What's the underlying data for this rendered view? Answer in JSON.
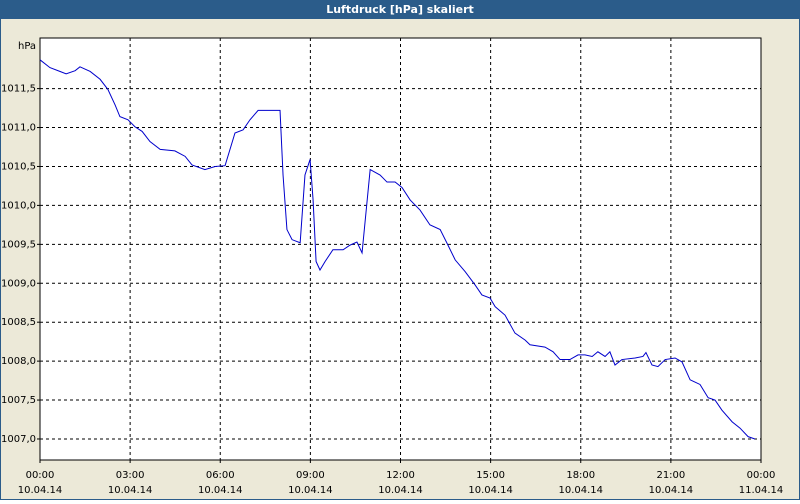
{
  "chart_data": {
    "type": "line",
    "title": "Luftdruck [hPa] skaliert",
    "y_unit": "hPa",
    "x": [
      0,
      0.33,
      0.67,
      0.87,
      1.17,
      1.33,
      1.67,
      2.0,
      2.26,
      2.5,
      2.66,
      2.93,
      3.16,
      3.4,
      3.66,
      4.0,
      4.49,
      4.83,
      5.06,
      5.49,
      5.83,
      6.16,
      6.49,
      6.76,
      6.99,
      7.26,
      7.66,
      7.99,
      8.09,
      8.22,
      8.39,
      8.66,
      8.82,
      8.99,
      9.09,
      9.19,
      9.32,
      9.49,
      9.75,
      10.09,
      10.32,
      10.55,
      10.72,
      10.99,
      11.32,
      11.55,
      11.82,
      12.05,
      12.32,
      12.65,
      12.98,
      13.32,
      13.58,
      13.82,
      14.15,
      14.48,
      14.71,
      14.98,
      15.15,
      15.48,
      15.81,
      16.15,
      16.31,
      16.81,
      17.08,
      17.31,
      17.64,
      17.91,
      18.14,
      18.38,
      18.57,
      18.81,
      18.97,
      19.14,
      19.37,
      19.81,
      20.07,
      20.17,
      20.37,
      20.57,
      20.81,
      21.14,
      21.37,
      21.64,
      21.97,
      22.24,
      22.47,
      22.7,
      23.04,
      23.3,
      23.57,
      23.8
    ],
    "values": [
      1011.87,
      1011.77,
      1011.72,
      1011.69,
      1011.73,
      1011.78,
      1011.72,
      1011.62,
      1011.49,
      1011.29,
      1011.14,
      1011.1,
      1011.01,
      1010.95,
      1010.82,
      1010.72,
      1010.7,
      1010.63,
      1010.52,
      1010.46,
      1010.5,
      1010.51,
      1010.93,
      1010.97,
      1011.1,
      1011.22,
      1011.22,
      1011.22,
      1010.39,
      1009.69,
      1009.56,
      1009.52,
      1010.39,
      1010.59,
      1010.07,
      1009.28,
      1009.17,
      1009.28,
      1009.43,
      1009.43,
      1009.49,
      1009.53,
      1009.39,
      1010.46,
      1010.39,
      1010.3,
      1010.3,
      1010.23,
      1010.07,
      1009.94,
      1009.75,
      1009.69,
      1009.49,
      1009.3,
      1009.15,
      1008.98,
      1008.85,
      1008.81,
      1008.7,
      1008.59,
      1008.36,
      1008.27,
      1008.21,
      1008.18,
      1008.12,
      1008.02,
      1008.02,
      1008.08,
      1008.08,
      1008.06,
      1008.12,
      1008.06,
      1008.12,
      1007.95,
      1008.02,
      1008.04,
      1008.06,
      1008.11,
      1007.95,
      1007.93,
      1008.02,
      1008.04,
      1007.99,
      1007.76,
      1007.7,
      1007.53,
      1007.5,
      1007.37,
      1007.22,
      1007.14,
      1007.03,
      1007.0
    ],
    "color": "#0000cc",
    "xlim": [
      0,
      24
    ],
    "xticks": [
      {
        "value": 0,
        "label": "00:00"
      },
      {
        "value": 3,
        "label": "03:00"
      },
      {
        "value": 6,
        "label": "06:00"
      },
      {
        "value": 9,
        "label": "09:00"
      },
      {
        "value": 12,
        "label": "12:00"
      },
      {
        "value": 15,
        "label": "15:00"
      },
      {
        "value": 18,
        "label": "18:00"
      },
      {
        "value": 21,
        "label": "21:00"
      },
      {
        "value": 24,
        "label": "00:00"
      }
    ],
    "xtick_dates": [
      "10.04.14",
      "10.04.14",
      "10.04.14",
      "10.04.14",
      "10.04.14",
      "10.04.14",
      "10.04.14",
      "10.04.14",
      "11.04.14"
    ],
    "ylim": [
      1006.73,
      1012.15
    ],
    "yticks": [
      {
        "value": 1007,
        "label": "1007,0"
      },
      {
        "value": 1007.5,
        "label": "1007,5"
      },
      {
        "value": 1008,
        "label": "1008,0"
      },
      {
        "value": 1008.5,
        "label": "1008,5"
      },
      {
        "value": 1009,
        "label": "1009,0"
      },
      {
        "value": 1009.5,
        "label": "1009,5"
      },
      {
        "value": 1010,
        "label": "1010,0"
      },
      {
        "value": 1010.5,
        "label": "1010,5"
      },
      {
        "value": 1011,
        "label": "1011,0"
      },
      {
        "value": 1011.5,
        "label": "1011,5"
      }
    ],
    "grid": true
  }
}
